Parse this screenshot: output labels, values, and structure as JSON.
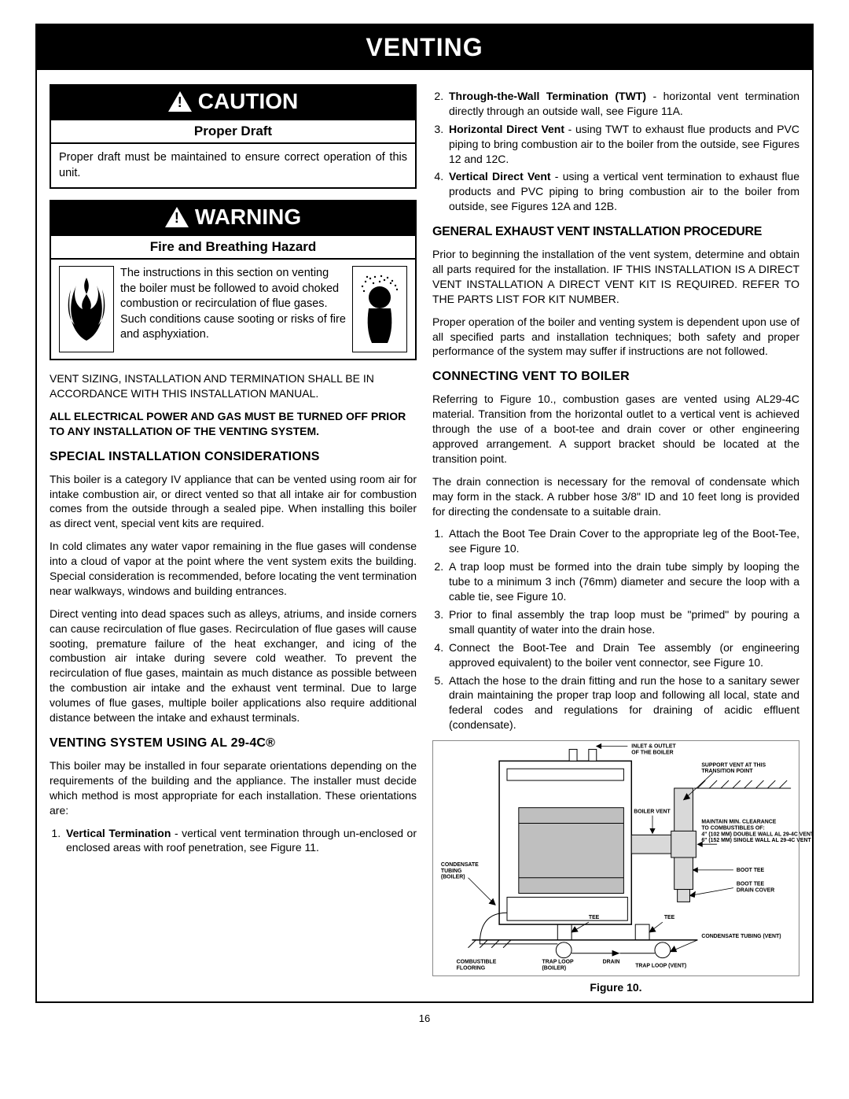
{
  "page": {
    "title": "VENTING",
    "number": "16"
  },
  "caution": {
    "header": "CAUTION",
    "sub": "Proper Draft",
    "body": "Proper draft must be maintained to ensure correct operation of this unit."
  },
  "warning": {
    "header": "WARNING",
    "sub": "Fire and Breathing Hazard",
    "body": "The instructions in this section on venting the boiler must be followed to avoid choked combustion or recirculation of flue gases. Such conditions cause sooting or risks of fire and asphyxiation."
  },
  "left": {
    "p1": "VENT SIZING, INSTALLATION AND TERMINATION SHALL BE IN ACCORDANCE WITH THIS INSTALLATION MANUAL.",
    "p2": "ALL ELECTRICAL POWER AND GAS MUST BE TURNED OFF PRIOR TO ANY INSTALLATION OF THE VENTING SYSTEM.",
    "h1": "SPECIAL INSTALLATION CONSIDERATIONS",
    "p3": "This boiler is a category IV appliance that can be vented using room air for intake combustion air, or direct vented so that all intake air for combustion comes from the outside through a sealed pipe. When installing this boiler as  direct vent, special vent kits are required.",
    "p4": "In cold climates any water vapor remaining in the flue gases will condense into a cloud of vapor at the point where the vent system exits the building. Special consideration is recommended, before locating the vent termination near walkways, windows and building entrances.",
    "p5": "Direct venting into dead spaces such as  alleys, atriums, and inside corners can cause recirculation of flue gases.  Recirculation of flue gases will cause sooting, premature failure of the heat exchanger, and icing of the combustion air intake during severe cold weather. To prevent the recirculation of flue gases, maintain as much distance as possible between the combustion air intake and the exhaust vent terminal.  Due to large volumes of flue gases, multiple boiler applications also require additional distance between the intake and exhaust terminals.",
    "h2": "VENTING SYSTEM USING AL 29-4C®",
    "p6": "This boiler may be installed in four separate orientations depending on the requirements of the building and the appliance. The installer must decide which method is most appropriate for each installation. These orientations are:",
    "li1_bold": "Vertical Termination",
    "li1_rest": " - vertical vent termination through un-enclosed or enclosed areas with roof penetration, see Figure 11."
  },
  "right": {
    "li2_bold": "Through-the-Wall Termination (TWT)",
    "li2_rest": " - horizontal vent termination directly through an outside wall, see Figure 11A.",
    "li3_bold": "Horizontal Direct Vent",
    "li3_rest": " - using TWT to exhaust flue products and PVC piping to bring combustion air to the boiler from the outside, see Figures 12 and 12C.",
    "li4_bold": "Vertical Direct Vent",
    "li4_rest": " - using a vertical vent termination to exhaust flue products and PVC piping to bring  combustion air to the boiler from outside, see Figures 12A and 12B.",
    "h1": "GENERAL EXHAUST VENT INSTALLATION PROCEDURE",
    "p1": "Prior to beginning the installation of the vent system, determine and obtain all parts required for the installation. IF THIS INSTALLATION IS A DIRECT VENT INSTALLATION A DIRECT VENT KIT IS REQUIRED. REFER TO THE PARTS LIST FOR KIT NUMBER.",
    "p2": "Proper operation of the boiler and venting system is dependent upon use of all specified parts and installation techniques; both safety and proper performance of the system may suffer if instructions are not followed.",
    "h2": "CONNECTING VENT TO BOILER",
    "p3": "Referring to Figure 10., combustion gases are vented using AL29-4C material. Transition from the horizontal outlet to a vertical vent is achieved through the use of a boot-tee and drain cover or other engineering approved arrangement. A support bracket should be located at the transition point.",
    "p4": "The drain connection is necessary for the removal of condensate which may form in the stack. A rubber hose 3/8\" ID and 10 feet long is provided for directing the condensate to a suitable drain.",
    "ol": [
      "Attach the Boot Tee Drain Cover to the appropriate leg of the Boot-Tee, see Figure 10.",
      "A trap loop must be formed into the drain tube simply by looping the tube to a minimum 3 inch (76mm) diameter and secure the loop with a cable tie, see Figure 10.",
      "Prior to final assembly the trap loop must be \"primed\" by pouring a small quantity of water into the drain hose.",
      "Connect the Boot-Tee and Drain Tee assembly (or engineering approved equivalent) to the boiler vent connector, see Figure 10.",
      "Attach the hose to the drain fitting and run the hose to a sanitary sewer drain maintaining the proper trap loop and following all local, state and federal codes and regulations for draining of acidic effluent (condensate)."
    ],
    "fig_caption": "Figure 10.",
    "fig_labels": {
      "inlet": "INLET & OUTLET\nOF THE BOILER",
      "support": "SUPPORT VENT AT THIS\nTRANSITION POINT",
      "boiler_vent": "BOILER VENT",
      "clearance": "MAINTAIN MIN. CLEARANCE\nTO COMBUSTIBLES OF:\n4\" (102 MM) DOUBLE WALL AL 29-4C VENT\n6\" (152 MM) SINGLE WALL AL 29-4C VENT",
      "cond_boiler": "CONDENSATE\nTUBING\n(BOILER)",
      "tee": "TEE",
      "boot_tee": "BOOT TEE",
      "boot_cover": "BOOT TEE\nDRAIN COVER",
      "cond_vent": "CONDENSATE TUBING (VENT)",
      "floor": "COMBUSTIBLE\nFLOORING",
      "trap_boiler": "TRAP LOOP\n(BOILER)",
      "drain": "DRAIN",
      "trap_vent": "TRAP LOOP (VENT)"
    }
  }
}
